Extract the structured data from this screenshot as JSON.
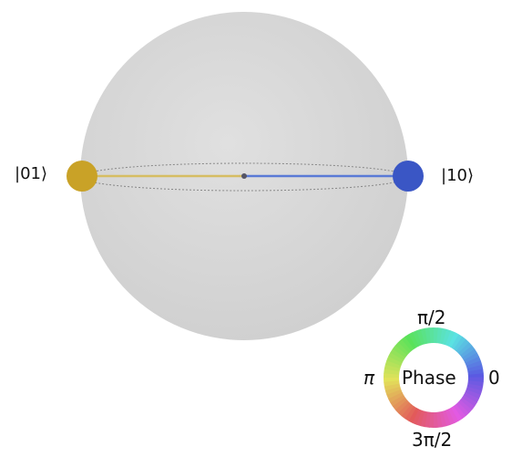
{
  "sphere": {
    "fill_color": "#d9d9d9",
    "states": [
      {
        "label": "|01⟩",
        "color": "#c9a227",
        "side": "left"
      },
      {
        "label": "|10⟩",
        "color": "#3a56c5",
        "side": "right"
      }
    ]
  },
  "phase_wheel": {
    "center_label": "Phase",
    "labels": {
      "top": "π/2",
      "left": "π",
      "right": "0",
      "bottom": "3π/2"
    }
  }
}
